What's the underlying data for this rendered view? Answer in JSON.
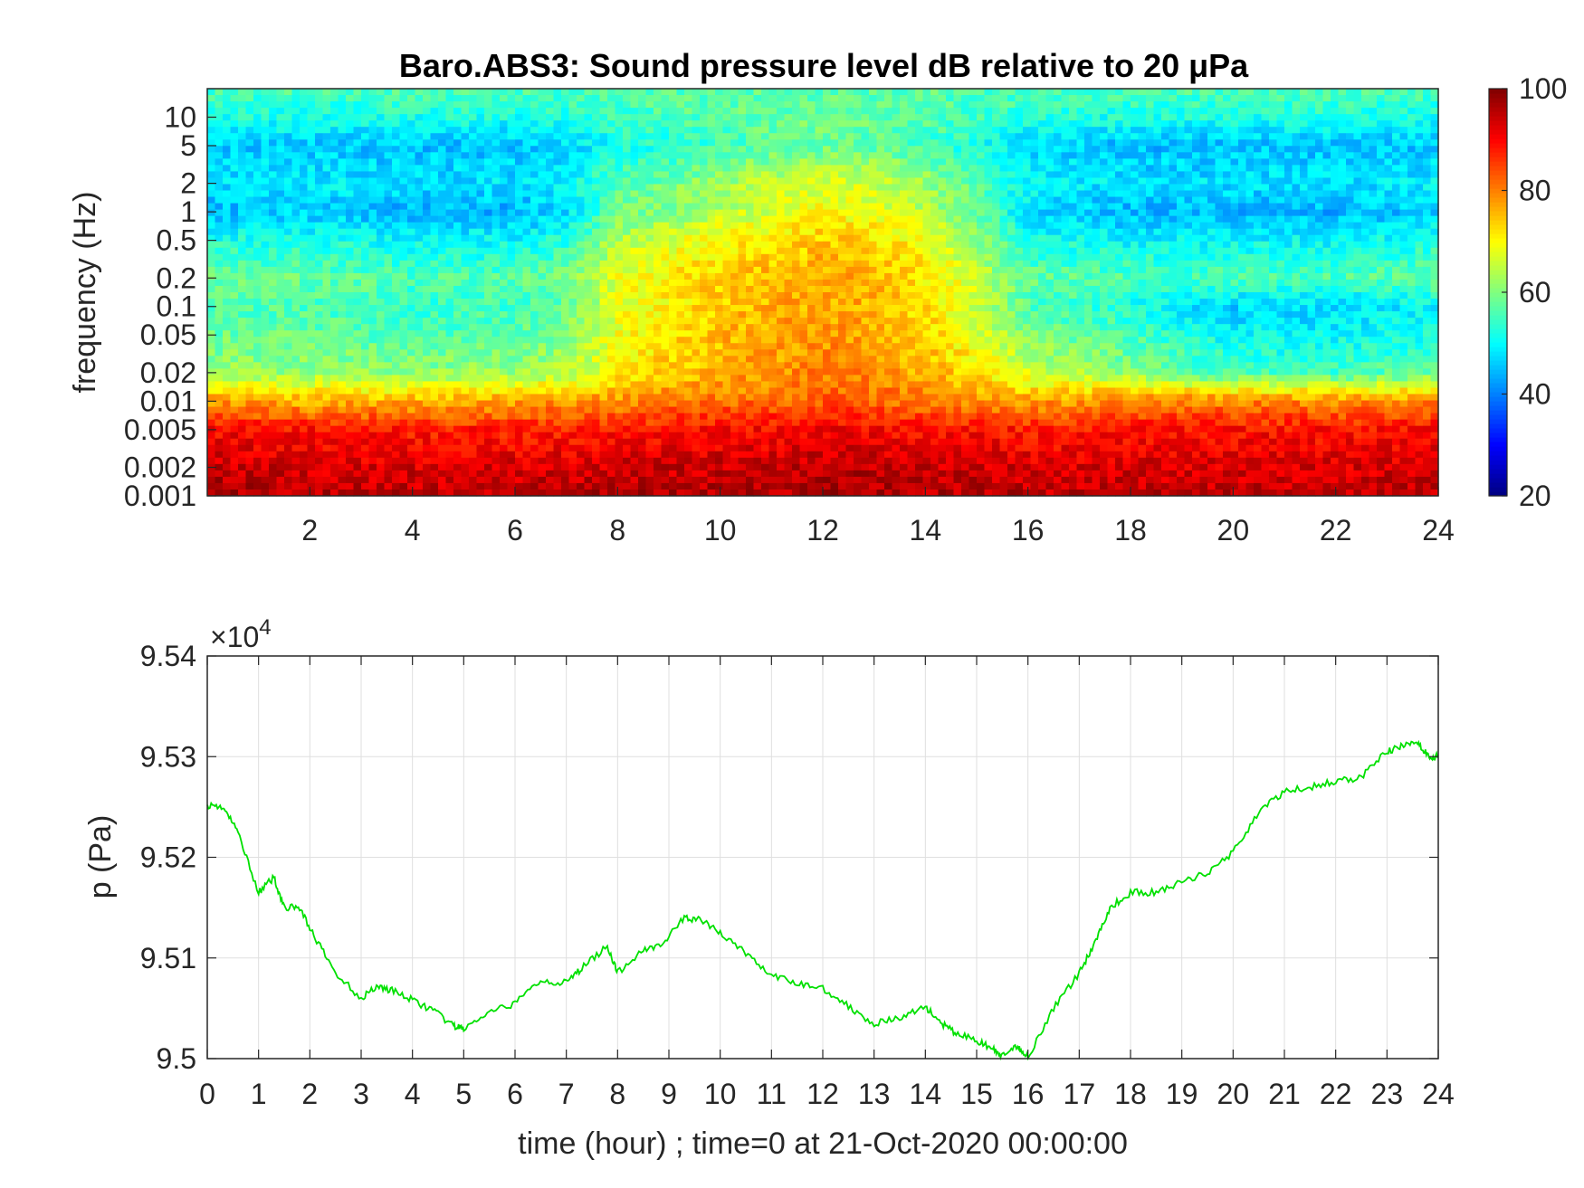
{
  "figure": {
    "colors": {
      "line": "#00e000",
      "grid": "#dfdfdf",
      "axis": "#262626"
    }
  },
  "chart_data": [
    {
      "type": "heatmap",
      "title": "Baro.ABS3: Sound pressure level dB relative to 20 μPa",
      "xlabel": "",
      "ylabel": "frequency (Hz)",
      "x_range": [
        0,
        24
      ],
      "x_ticks": [
        2,
        4,
        6,
        8,
        10,
        12,
        14,
        16,
        18,
        20,
        22,
        24
      ],
      "y_scale": "log",
      "y_range": [
        0.001,
        20
      ],
      "y_ticks": [
        0.001,
        0.002,
        0.005,
        0.01,
        0.02,
        0.05,
        0.1,
        0.2,
        0.5,
        1,
        2,
        5,
        10
      ],
      "y_tick_labels": [
        "0.001",
        "0.002",
        "0.005",
        "0.01",
        "0.02",
        "0.05",
        "0.1",
        "0.2",
        "0.5",
        "1",
        "2",
        "5",
        "10"
      ],
      "colormap": "jet",
      "colorbar": {
        "range": [
          20,
          100
        ],
        "ticks": [
          20,
          40,
          60,
          80,
          100
        ]
      },
      "levels_db": {
        "freq_hz": [
          0.001,
          0.002,
          0.005,
          0.01,
          0.02,
          0.05,
          0.1,
          0.2,
          0.5,
          1,
          2,
          5,
          10,
          20
        ],
        "hours": [
          0,
          2,
          4,
          6,
          7,
          8,
          9,
          10,
          11,
          12,
          13,
          14,
          15,
          16,
          18,
          20,
          22,
          24
        ],
        "db": [
          [
            97,
            96,
            95,
            95,
            96,
            96,
            96,
            96,
            96,
            97,
            97,
            96,
            96,
            95,
            95,
            95,
            95,
            96
          ],
          [
            95,
            93,
            93,
            93,
            93,
            94,
            94,
            94,
            94,
            95,
            95,
            94,
            94,
            93,
            93,
            93,
            93,
            93
          ],
          [
            90,
            89,
            88,
            88,
            88,
            88,
            89,
            90,
            90,
            91,
            90,
            89,
            89,
            88,
            89,
            89,
            89,
            90
          ],
          [
            78,
            76,
            76,
            77,
            78,
            79,
            80,
            81,
            82,
            83,
            82,
            80,
            79,
            77,
            80,
            80,
            79,
            79
          ],
          [
            62,
            62,
            61,
            62,
            64,
            70,
            74,
            76,
            78,
            80,
            79,
            76,
            72,
            66,
            60,
            55,
            55,
            58
          ],
          [
            58,
            58,
            56,
            57,
            60,
            69,
            72,
            75,
            77,
            78,
            77,
            74,
            68,
            60,
            56,
            50,
            50,
            52
          ],
          [
            56,
            56,
            54,
            55,
            58,
            68,
            71,
            74,
            76,
            77,
            76,
            72,
            66,
            56,
            52,
            46,
            47,
            50
          ],
          [
            58,
            58,
            56,
            57,
            59,
            68,
            71,
            74,
            76,
            77,
            76,
            72,
            66,
            58,
            56,
            56,
            56,
            58
          ],
          [
            52,
            52,
            50,
            50,
            53,
            64,
            67,
            70,
            72,
            74,
            73,
            69,
            62,
            52,
            50,
            50,
            50,
            52
          ],
          [
            44,
            46,
            44,
            44,
            47,
            58,
            61,
            64,
            67,
            70,
            68,
            64,
            58,
            48,
            44,
            44,
            44,
            46
          ],
          [
            48,
            49,
            48,
            48,
            50,
            57,
            59,
            62,
            65,
            67,
            66,
            62,
            57,
            50,
            48,
            48,
            48,
            49
          ],
          [
            46,
            46,
            45,
            45,
            47,
            51,
            53,
            55,
            57,
            58,
            57,
            55,
            52,
            47,
            45,
            45,
            45,
            46
          ],
          [
            52,
            52,
            52,
            52,
            53,
            55,
            56,
            57,
            58,
            59,
            58,
            57,
            55,
            53,
            52,
            52,
            52,
            52
          ],
          [
            56,
            56,
            56,
            56,
            56,
            56,
            57,
            57,
            57,
            57,
            57,
            57,
            56,
            56,
            56,
            56,
            56,
            56
          ]
        ]
      }
    },
    {
      "type": "line",
      "xlabel": "time (hour) ; time=0 at 21-Oct-2020 00:00:00",
      "ylabel": "p (Pa)",
      "y_exponent_label": "×10",
      "y_exponent_power": "4",
      "x_range": [
        0,
        24
      ],
      "x_ticks": [
        0,
        1,
        2,
        3,
        4,
        5,
        6,
        7,
        8,
        9,
        10,
        11,
        12,
        13,
        14,
        15,
        16,
        17,
        18,
        19,
        20,
        21,
        22,
        23,
        24
      ],
      "y_range": [
        95000,
        95400
      ],
      "y_ticks": [
        95000,
        95100,
        95200,
        95300,
        95400
      ],
      "y_tick_labels": [
        "9.5",
        "9.51",
        "9.52",
        "9.53",
        "9.54"
      ],
      "grid": true,
      "series": [
        {
          "x": [
            0,
            0.3,
            0.6,
            1.0,
            1.3,
            1.5,
            1.8,
            2.1,
            2.5,
            3.0,
            3.3,
            3.6,
            4.0,
            4.4,
            4.8,
            5.0,
            5.5,
            6.0,
            6.5,
            7.0,
            7.3,
            7.8,
            8.0,
            8.5,
            8.9,
            9.3,
            9.6,
            10.0,
            10.5,
            11.0,
            11.5,
            12.0,
            12.5,
            13.0,
            13.5,
            14.0,
            14.3,
            14.6,
            15.0,
            15.3,
            15.5,
            15.8,
            16.0,
            16.5,
            17.0,
            17.3,
            17.6,
            18.0,
            18.5,
            19.0,
            19.5,
            20.0,
            20.5,
            21.0,
            21.5,
            22.0,
            22.5,
            23.0,
            23.3,
            23.6,
            23.8,
            24.0
          ],
          "y": [
            95252,
            95250,
            95225,
            95165,
            95180,
            95150,
            95150,
            95120,
            95085,
            95060,
            95072,
            95068,
            95058,
            95048,
            95032,
            95030,
            95045,
            95055,
            95078,
            95075,
            95090,
            95112,
            95085,
            95108,
            95115,
            95140,
            95138,
            95125,
            95105,
            95082,
            95075,
            95070,
            95052,
            95035,
            95040,
            95052,
            95035,
            95025,
            95018,
            95010,
            95002,
            95012,
            95002,
            95050,
            95085,
            95115,
            95150,
            95165,
            95165,
            95175,
            95185,
            95205,
            95245,
            95265,
            95270,
            95275,
            95280,
            95305,
            95310,
            95315,
            95300,
            95300
          ]
        }
      ]
    }
  ]
}
